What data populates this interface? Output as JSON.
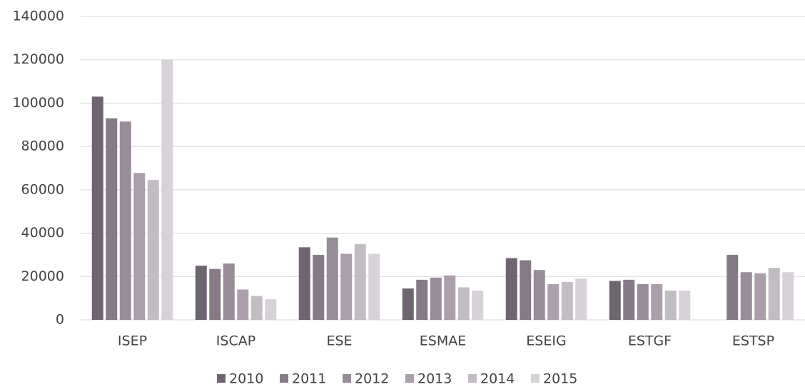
{
  "chart_data": {
    "type": "bar",
    "categories": [
      "ISEP",
      "ISCAP",
      "ESE",
      "ESMAE",
      "ESEIG",
      "ESTGF",
      "ESTSP"
    ],
    "series": [
      {
        "name": "2010",
        "color": "#6f6570",
        "values": [
          103000,
          25000,
          33500,
          14500,
          28500,
          18000,
          null
        ]
      },
      {
        "name": "2011",
        "color": "#857a86",
        "values": [
          93000,
          23500,
          30000,
          18500,
          27500,
          18500,
          30000
        ]
      },
      {
        "name": "2012",
        "color": "#988c99",
        "values": [
          91500,
          26000,
          38000,
          19500,
          23000,
          16500,
          22000
        ]
      },
      {
        "name": "2013",
        "color": "#ab9fab",
        "values": [
          67800,
          14000,
          30500,
          20500,
          16500,
          16500,
          21500
        ]
      },
      {
        "name": "2014",
        "color": "#c2bcc3",
        "values": [
          64500,
          11000,
          35000,
          15000,
          17500,
          13500,
          24000
        ]
      },
      {
        "name": "2015",
        "color": "#d6d2d7",
        "values": [
          120000,
          9500,
          30500,
          13500,
          19000,
          13500,
          22000
        ]
      }
    ],
    "ylim": [
      0,
      140000
    ],
    "yticks": [
      0,
      20000,
      40000,
      60000,
      80000,
      100000,
      120000,
      140000
    ],
    "grid": true,
    "legend": "bottom"
  }
}
